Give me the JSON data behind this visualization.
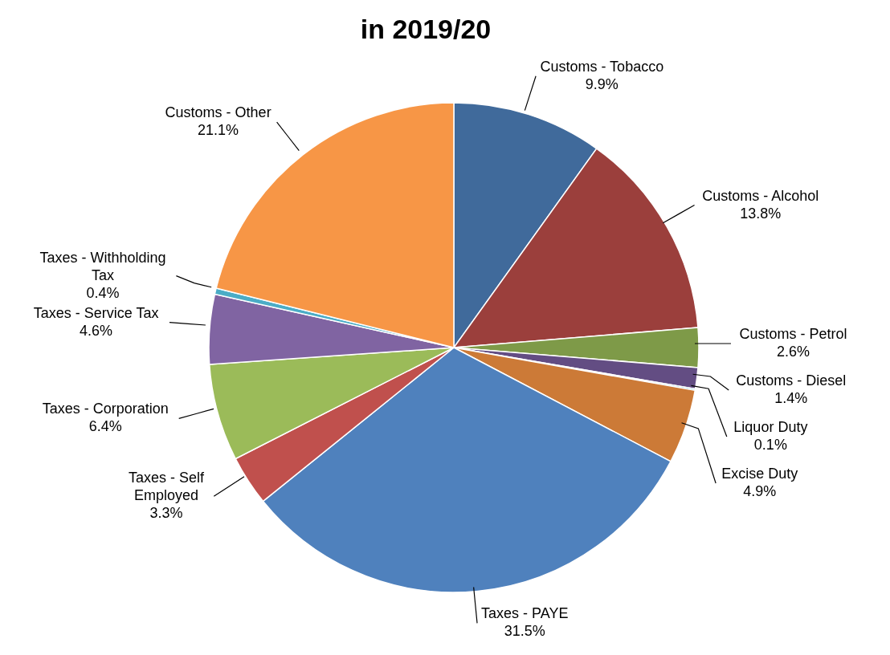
{
  "chart_data": {
    "type": "pie",
    "title": "in 2019/20",
    "categories": [
      "Customs - Tobacco",
      "Customs - Alcohol",
      "Customs - Petrol",
      "Customs - Diesel",
      "Liquor Duty",
      "Excise Duty",
      "Taxes - PAYE",
      "Taxes - Self Employed",
      "Taxes - Corporation",
      "Taxes - Service Tax",
      "Taxes - Withholding Tax",
      "Customs - Other"
    ],
    "values": [
      9.9,
      13.8,
      2.6,
      1.4,
      0.1,
      4.9,
      31.5,
      3.3,
      6.4,
      4.6,
      0.4,
      21.1
    ],
    "value_labels": [
      "9.9%",
      "13.8%",
      "2.6%",
      "1.4%",
      "0.1%",
      "4.9%",
      "31.5%",
      "3.3%",
      "6.4%",
      "4.6%",
      "0.4%",
      "21.1%"
    ],
    "colors": [
      "#406a9b",
      "#9b3f3c",
      "#7e9a48",
      "#634d83",
      "#3fa0bf",
      "#cc7a37",
      "#4f81bd",
      "#c0504d",
      "#9bbb59",
      "#8064a2",
      "#4bacc6",
      "#f79646"
    ]
  }
}
